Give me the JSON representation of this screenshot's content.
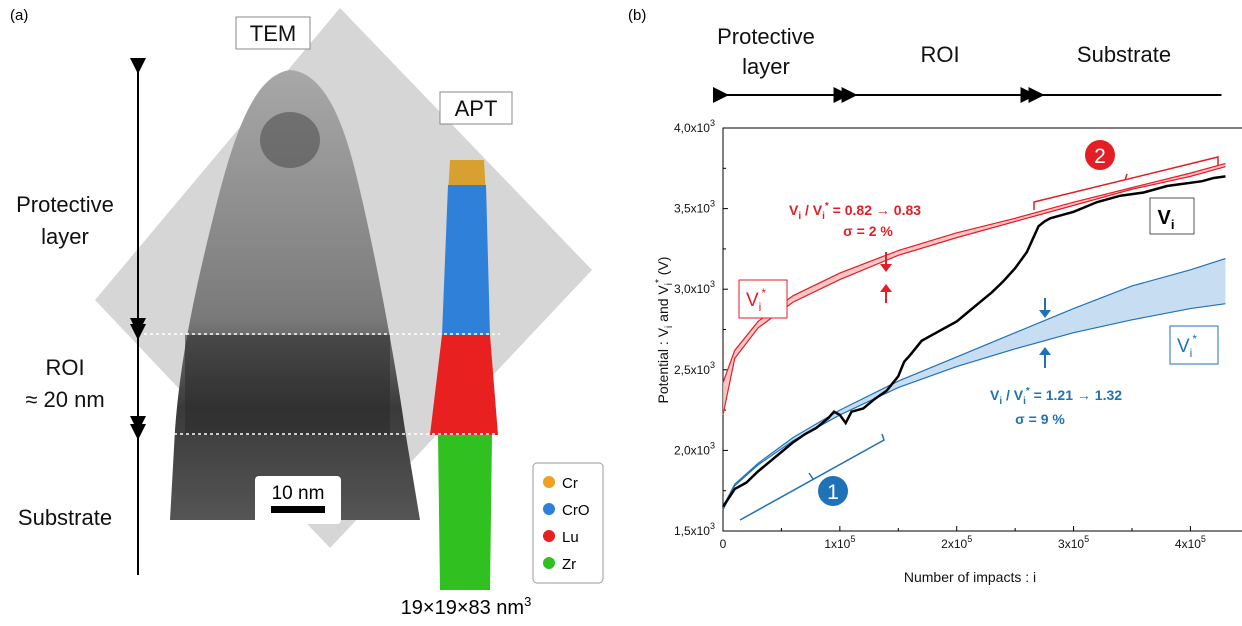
{
  "panel_a": {
    "label": "(a)",
    "tem_label": "TEM",
    "apt_label": "APT",
    "protective_label_1": "Protective",
    "protective_label_2": "layer",
    "roi_label_1": "ROI",
    "roi_label_2": "≈ 20 nm",
    "substrate_label": "Substrate",
    "scale_bar": "10 nm",
    "volume_label": "19×19×83 nm",
    "volume_exp": "3",
    "legend": [
      {
        "name": "Cr",
        "color": "#f0a020"
      },
      {
        "name": "CrO",
        "color": "#2f80d8"
      },
      {
        "name": "Lu",
        "color": "#e82020"
      },
      {
        "name": "Zr",
        "color": "#30c020"
      }
    ]
  },
  "panel_b": {
    "label": "(b)",
    "region_protective_1": "Protective",
    "region_protective_2": "layer",
    "region_roi": "ROI",
    "region_substrate": "Substrate",
    "xlabel": "Number of impacts : i",
    "ylabel": "Potential : V",
    "ylabel_sub1": "i",
    "ylabel_mid": " and V",
    "ylabel_sub2": "i",
    "ylabel_sup": "*",
    "ylabel_end": " (V)",
    "x_ticks": [
      "0",
      "1x10",
      "2x10",
      "3x10",
      "4x10"
    ],
    "x_tick_exp": "5",
    "y_ticks": [
      "1,5x10",
      "2,0x10",
      "2,5x10",
      "3,0x10",
      "3,5x10",
      "4,0x10"
    ],
    "y_tick_exp": "3",
    "ann_red_line1": "V",
    "ann_red_ratio": "/ V",
    "ann_red_values": " = 0.82 → 0.83",
    "ann_red_sigma": "σ = 2 %",
    "ann_blue_values": " = 1.21 → 1.32",
    "ann_blue_sigma": "σ = 9 %",
    "badge_1": "1",
    "badge_2": "2",
    "vi_label": "V",
    "vi_sub": "i",
    "vistar_sup": "*",
    "colors": {
      "red": "#e31e24",
      "blue": "#1f72b8",
      "black": "#000000"
    }
  },
  "chart_data": {
    "type": "line",
    "xlabel": "Number of impacts : i",
    "ylabel": "Potential : Vi and Vi* (V)",
    "xlim": [
      0,
      445000
    ],
    "ylim": [
      1500,
      4000
    ],
    "regions": [
      {
        "name": "Protective layer",
        "x": [
          0,
          110000
        ]
      },
      {
        "name": "ROI",
        "x": [
          110000,
          270000
        ]
      },
      {
        "name": "Substrate",
        "x": [
          270000,
          430000
        ]
      }
    ],
    "series": [
      {
        "name": "Vi",
        "color": "#000000",
        "x": [
          0,
          10000,
          20000,
          30000,
          40000,
          50000,
          60000,
          70000,
          80000,
          90000,
          95000,
          100000,
          105000,
          110000,
          120000,
          130000,
          140000,
          150000,
          155000,
          160000,
          170000,
          180000,
          190000,
          200000,
          210000,
          220000,
          230000,
          240000,
          250000,
          260000,
          270000,
          275000,
          280000,
          290000,
          300000,
          310000,
          320000,
          330000,
          340000,
          350000,
          360000,
          370000,
          380000,
          390000,
          400000,
          410000,
          420000,
          430000
        ],
        "y": [
          1650,
          1760,
          1800,
          1870,
          1930,
          1990,
          2050,
          2100,
          2140,
          2200,
          2240,
          2220,
          2170,
          2240,
          2260,
          2320,
          2370,
          2460,
          2550,
          2590,
          2680,
          2720,
          2760,
          2800,
          2860,
          2920,
          2980,
          3050,
          3130,
          3230,
          3390,
          3420,
          3440,
          3460,
          3480,
          3510,
          3540,
          3560,
          3580,
          3590,
          3600,
          3620,
          3640,
          3650,
          3660,
          3670,
          3690,
          3700
        ]
      },
      {
        "name": "Vi* upper (red)",
        "color": "#e31e24",
        "x": [
          0,
          10000,
          30000,
          60000,
          100000,
          150000,
          200000,
          250000,
          300000,
          350000,
          400000,
          430000
        ],
        "y": [
          2420,
          2620,
          2800,
          2960,
          3100,
          3240,
          3350,
          3440,
          3540,
          3630,
          3720,
          3780
        ]
      },
      {
        "name": "Vi* lower (red)",
        "color": "#e31e24",
        "x": [
          0,
          10000,
          30000,
          60000,
          100000,
          150000,
          200000,
          250000,
          300000,
          350000,
          400000,
          430000
        ],
        "y": [
          2220,
          2570,
          2760,
          2920,
          3060,
          3210,
          3320,
          3420,
          3520,
          3620,
          3700,
          3760
        ]
      },
      {
        "name": "Vi* upper (blue)",
        "color": "#1f72b8",
        "x": [
          0,
          10000,
          30000,
          60000,
          100000,
          150000,
          200000,
          250000,
          300000,
          350000,
          400000,
          430000
        ],
        "y": [
          1650,
          1790,
          1920,
          2080,
          2250,
          2430,
          2580,
          2730,
          2880,
          3020,
          3120,
          3190
        ]
      },
      {
        "name": "Vi* lower (blue)",
        "color": "#1f72b8",
        "x": [
          0,
          10000,
          30000,
          60000,
          100000,
          150000,
          200000,
          250000,
          300000,
          350000,
          400000,
          430000
        ],
        "y": [
          1630,
          1780,
          1910,
          2060,
          2220,
          2390,
          2520,
          2630,
          2730,
          2810,
          2880,
          2910
        ]
      }
    ]
  }
}
